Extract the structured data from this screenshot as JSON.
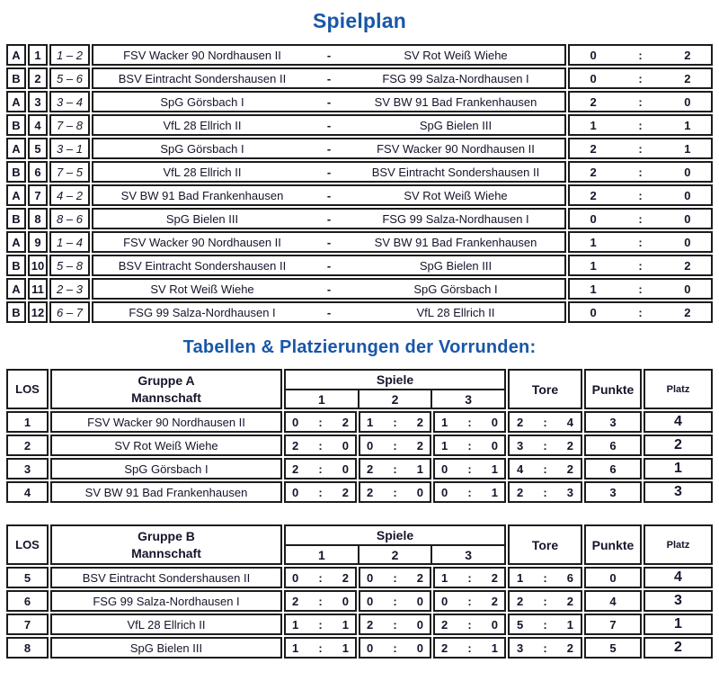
{
  "titles": {
    "spielplan": "Spielplan",
    "tabellen": "Tabellen & Platzierungen der Vorrunden:"
  },
  "symbols": {
    "colon": ":",
    "dash": "-"
  },
  "colors": {
    "heading_blue": "#1857a8",
    "text_dark": "#15152b",
    "border_black": "#1c1c1c"
  },
  "spielplan": {
    "matches": [
      {
        "group": "A",
        "nr": "1",
        "pair": "1 – 2",
        "home": "FSV Wacker 90 Nordhausen II",
        "away": "SV Rot Weiß Wiehe",
        "home_score": "0",
        "away_score": "2"
      },
      {
        "group": "B",
        "nr": "2",
        "pair": "5 – 6",
        "home": "BSV Eintracht Sondershausen II",
        "away": "FSG 99 Salza-Nordhausen I",
        "home_score": "0",
        "away_score": "2"
      },
      {
        "group": "A",
        "nr": "3",
        "pair": "3 – 4",
        "home": "SpG Görsbach I",
        "away": "SV BW 91 Bad Frankenhausen",
        "home_score": "2",
        "away_score": "0"
      },
      {
        "group": "B",
        "nr": "4",
        "pair": "7 – 8",
        "home": "VfL 28 Ellrich II",
        "away": "SpG Bielen III",
        "home_score": "1",
        "away_score": "1"
      },
      {
        "group": "A",
        "nr": "5",
        "pair": "3 – 1",
        "home": "SpG Görsbach I",
        "away": "FSV Wacker 90 Nordhausen II",
        "home_score": "2",
        "away_score": "1"
      },
      {
        "group": "B",
        "nr": "6",
        "pair": "7 – 5",
        "home": "VfL 28 Ellrich II",
        "away": "BSV Eintracht Sondershausen II",
        "home_score": "2",
        "away_score": "0"
      },
      {
        "group": "A",
        "nr": "7",
        "pair": "4 – 2",
        "home": "SV BW 91 Bad Frankenhausen",
        "away": "SV Rot Weiß Wiehe",
        "home_score": "2",
        "away_score": "0"
      },
      {
        "group": "B",
        "nr": "8",
        "pair": "8 – 6",
        "home": "SpG Bielen III",
        "away": "FSG 99 Salza-Nordhausen I",
        "home_score": "0",
        "away_score": "0"
      },
      {
        "group": "A",
        "nr": "9",
        "pair": "1 – 4",
        "home": "FSV Wacker 90 Nordhausen II",
        "away": "SV BW 91 Bad Frankenhausen",
        "home_score": "1",
        "away_score": "0"
      },
      {
        "group": "B",
        "nr": "10",
        "pair": "5 – 8",
        "home": "BSV Eintracht Sondershausen II",
        "away": "SpG Bielen III",
        "home_score": "1",
        "away_score": "2"
      },
      {
        "group": "A",
        "nr": "11",
        "pair": "2 – 3",
        "home": "SV Rot Weiß Wiehe",
        "away": "SpG Görsbach I",
        "home_score": "1",
        "away_score": "0"
      },
      {
        "group": "B",
        "nr": "12",
        "pair": "6 – 7",
        "home": "FSG 99 Salza-Nordhausen I",
        "away": "VfL 28 Ellrich II",
        "home_score": "0",
        "away_score": "2"
      }
    ]
  },
  "groups": [
    {
      "header": {
        "los": "LOS",
        "title": "Gruppe A",
        "subtitle": "Mannschaft",
        "spiele": "Spiele",
        "games": [
          "1",
          "2",
          "3"
        ],
        "tore": "Tore",
        "punkte": "Punkte",
        "platz": "Platz"
      },
      "rows": [
        {
          "los": "1",
          "team": "FSV Wacker 90 Nordhausen II",
          "games": [
            {
              "h": "0",
              "a": "2"
            },
            {
              "h": "1",
              "a": "2"
            },
            {
              "h": "1",
              "a": "0"
            }
          ],
          "tore": {
            "h": "2",
            "a": "4"
          },
          "punkte": "3",
          "platz": "4"
        },
        {
          "los": "2",
          "team": "SV Rot Weiß Wiehe",
          "games": [
            {
              "h": "2",
              "a": "0"
            },
            {
              "h": "0",
              "a": "2"
            },
            {
              "h": "1",
              "a": "0"
            }
          ],
          "tore": {
            "h": "3",
            "a": "2"
          },
          "punkte": "6",
          "platz": "2"
        },
        {
          "los": "3",
          "team": "SpG Görsbach I",
          "games": [
            {
              "h": "2",
              "a": "0"
            },
            {
              "h": "2",
              "a": "1"
            },
            {
              "h": "0",
              "a": "1"
            }
          ],
          "tore": {
            "h": "4",
            "a": "2"
          },
          "punkte": "6",
          "platz": "1"
        },
        {
          "los": "4",
          "team": "SV BW 91 Bad Frankenhausen",
          "games": [
            {
              "h": "0",
              "a": "2"
            },
            {
              "h": "2",
              "a": "0"
            },
            {
              "h": "0",
              "a": "1"
            }
          ],
          "tore": {
            "h": "2",
            "a": "3"
          },
          "punkte": "3",
          "platz": "3"
        }
      ]
    },
    {
      "header": {
        "los": "LOS",
        "title": "Gruppe B",
        "subtitle": "Mannschaft",
        "spiele": "Spiele",
        "games": [
          "1",
          "2",
          "3"
        ],
        "tore": "Tore",
        "punkte": "Punkte",
        "platz": "Platz"
      },
      "rows": [
        {
          "los": "5",
          "team": "BSV Eintracht Sondershausen II",
          "games": [
            {
              "h": "0",
              "a": "2"
            },
            {
              "h": "0",
              "a": "2"
            },
            {
              "h": "1",
              "a": "2"
            }
          ],
          "tore": {
            "h": "1",
            "a": "6"
          },
          "punkte": "0",
          "platz": "4"
        },
        {
          "los": "6",
          "team": "FSG 99 Salza-Nordhausen I",
          "games": [
            {
              "h": "2",
              "a": "0"
            },
            {
              "h": "0",
              "a": "0"
            },
            {
              "h": "0",
              "a": "2"
            }
          ],
          "tore": {
            "h": "2",
            "a": "2"
          },
          "punkte": "4",
          "platz": "3"
        },
        {
          "los": "7",
          "team": "VfL 28 Ellrich II",
          "games": [
            {
              "h": "1",
              "a": "1"
            },
            {
              "h": "2",
              "a": "0"
            },
            {
              "h": "2",
              "a": "0"
            }
          ],
          "tore": {
            "h": "5",
            "a": "1"
          },
          "punkte": "7",
          "platz": "1"
        },
        {
          "los": "8",
          "team": "SpG Bielen III",
          "games": [
            {
              "h": "1",
              "a": "1"
            },
            {
              "h": "0",
              "a": "0"
            },
            {
              "h": "2",
              "a": "1"
            }
          ],
          "tore": {
            "h": "3",
            "a": "2"
          },
          "punkte": "5",
          "platz": "2"
        }
      ]
    }
  ]
}
